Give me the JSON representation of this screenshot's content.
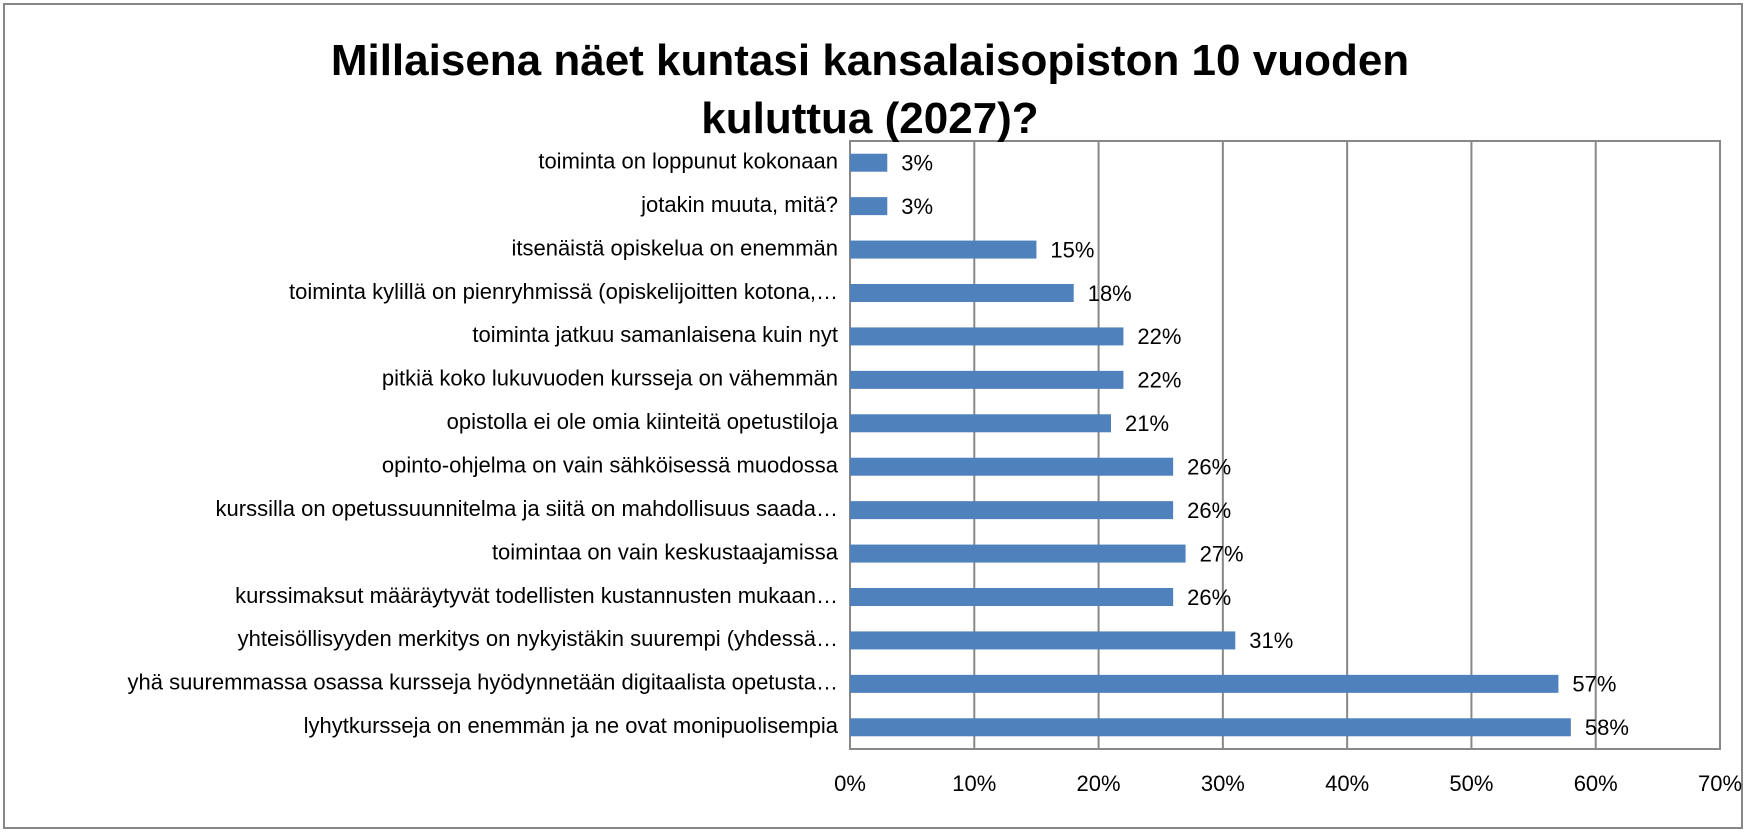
{
  "chart_data": {
    "type": "bar",
    "orientation": "horizontal",
    "title": "Millaisena näet kuntasi kansalaisopiston 10 vuoden kuluttua (2027)?",
    "categories": [
      "toiminta on loppunut kokonaan",
      "jotakin muuta, mitä?",
      "itsenäistä opiskelua on enemmän",
      "toiminta kylillä on pienryhmissä (opiskelijoitten kotona,…",
      "toiminta jatkuu samanlaisena kuin nyt",
      "pitkiä koko lukuvuoden kursseja on vähemmän",
      "opistolla ei ole omia kiinteitä opetustiloja",
      "opinto-ohjelma on vain sähköisessä muodossa",
      "kurssilla on opetussuunnitelma ja siitä on mahdollisuus saada…",
      "toimintaa on vain keskustaajamissa",
      "kurssimaksut määräytyvät todellisten kustannusten mukaan…",
      "yhteisöllisyyden merkitys on nykyistäkin suurempi (yhdessä…",
      "yhä suuremmassa osassa kursseja hyödynnetään digitaalista opetusta…",
      "lyhytkursseja on enemmän ja ne ovat monipuolisempia"
    ],
    "values": [
      3,
      3,
      15,
      18,
      22,
      22,
      21,
      26,
      26,
      27,
      26,
      31,
      57,
      58
    ],
    "value_labels": [
      "3%",
      "3%",
      "15%",
      "18%",
      "22%",
      "22%",
      "21%",
      "26%",
      "26%",
      "27%",
      "26%",
      "31%",
      "57%",
      "58%"
    ],
    "color": "#4f81bd",
    "xlim": [
      0,
      70
    ],
    "xticks": [
      {
        "value": 0,
        "label": "0%"
      },
      {
        "value": 10,
        "label": "10%"
      },
      {
        "value": 20,
        "label": "20%"
      },
      {
        "value": 30,
        "label": "30%"
      },
      {
        "value": 40,
        "label": "40%"
      },
      {
        "value": 50,
        "label": "50%"
      },
      {
        "value": 60,
        "label": "60%"
      },
      {
        "value": 70,
        "label": "70%"
      }
    ],
    "grid": true
  }
}
